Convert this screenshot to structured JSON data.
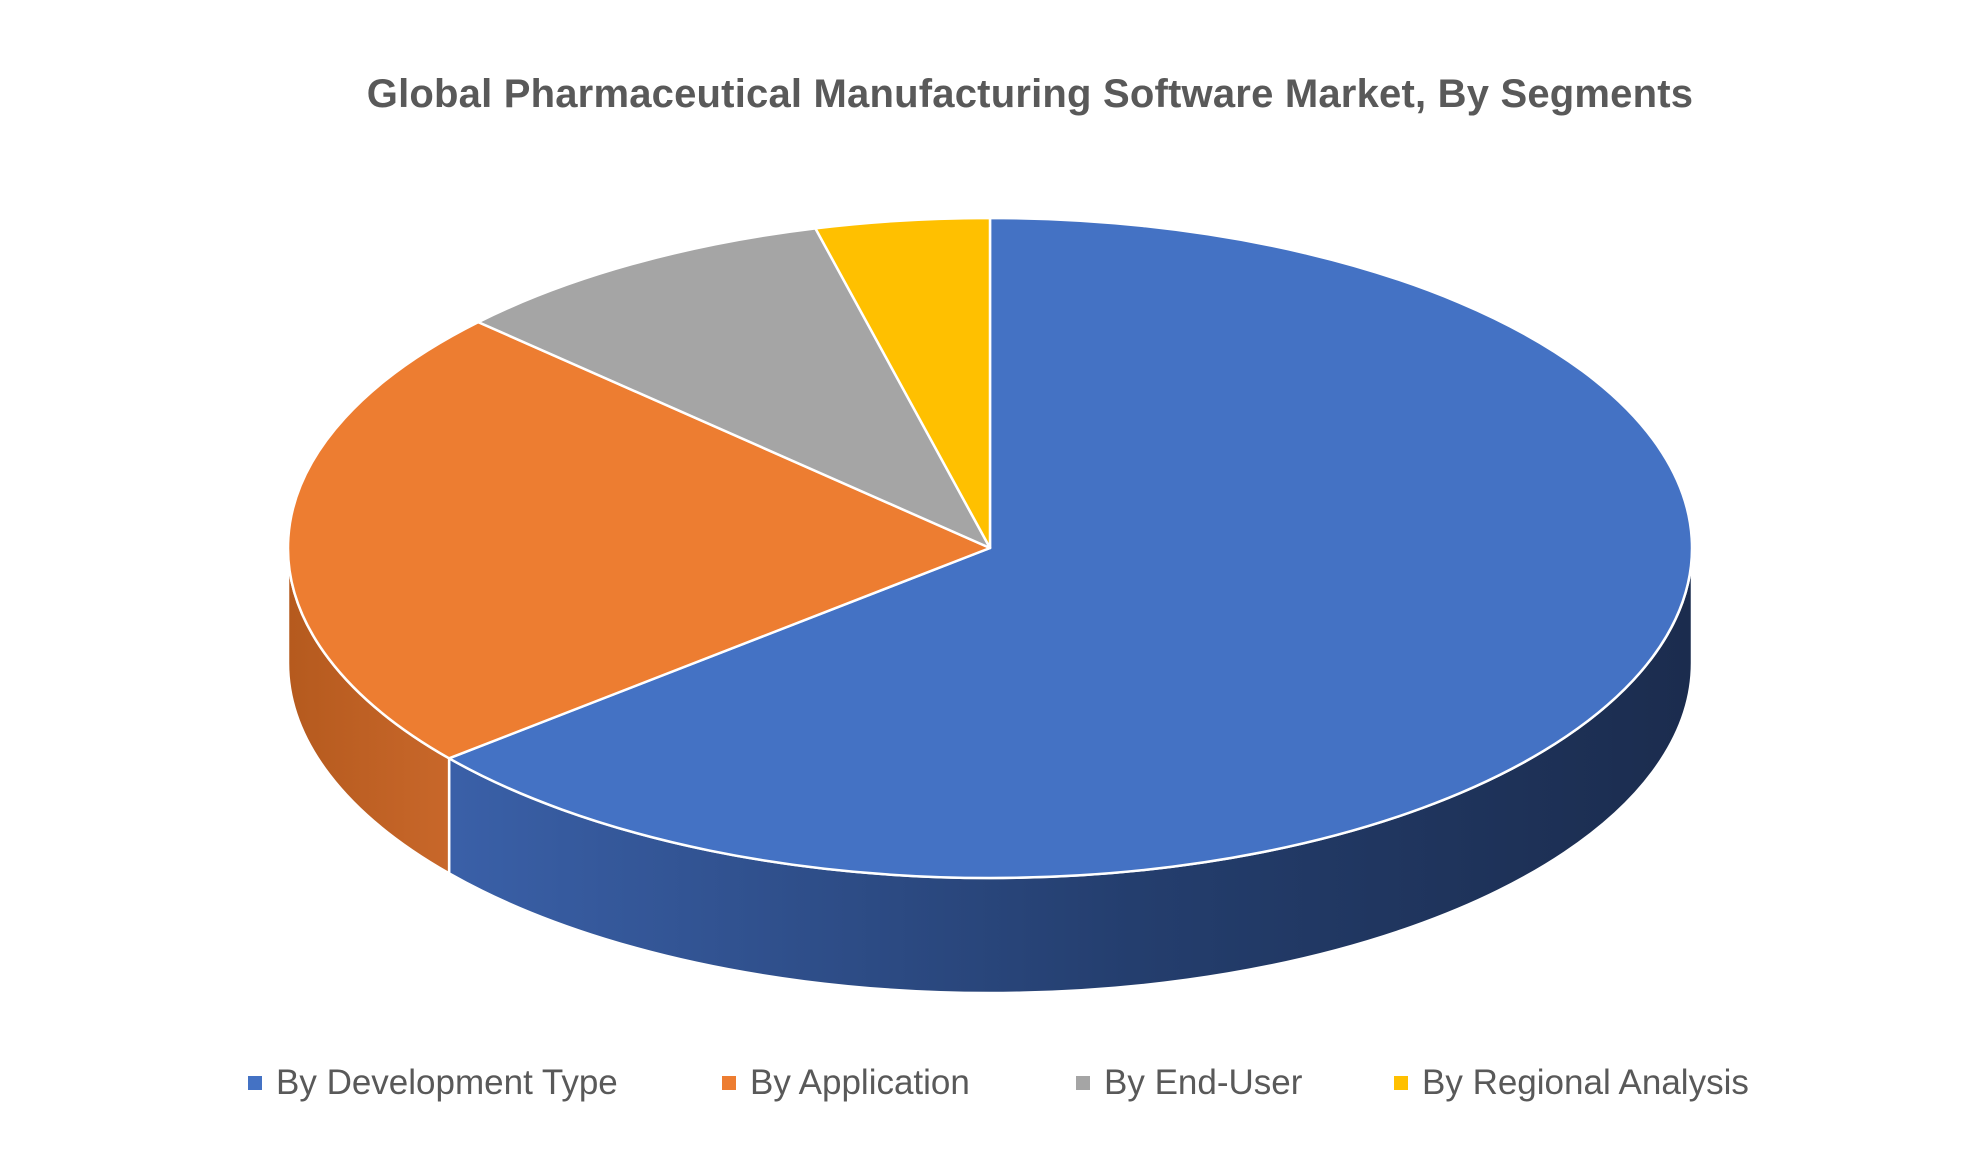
{
  "chart_data": {
    "type": "pie",
    "title": "Global Pharmaceutical Manufacturing Software Market, By Segments",
    "style": "3d",
    "legend_position": "bottom",
    "slices": [
      {
        "label": "By Development Type",
        "value": 64,
        "color": "#4472C4"
      },
      {
        "label": "By Application",
        "value": 23,
        "color": "#ED7D31"
      },
      {
        "label": "By End-User",
        "value": 9,
        "color": "#A5A5A5"
      },
      {
        "label": "By Regional Analysis",
        "value": 4,
        "color": "#FFC000"
      }
    ]
  }
}
